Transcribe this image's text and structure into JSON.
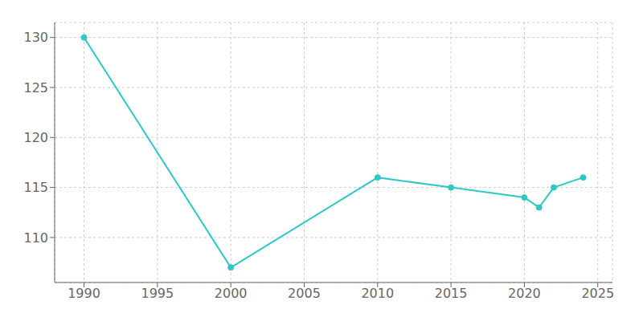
{
  "chart_data": {
    "type": "line",
    "x": [
      1990,
      2000,
      2010,
      2015,
      2020,
      2021,
      2022,
      2024
    ],
    "values": [
      130,
      107,
      116,
      115,
      114,
      113,
      115,
      116
    ],
    "color": "#2ec8c8",
    "marker": "circle",
    "xlim": [
      1988,
      2026
    ],
    "ylim": [
      105.5,
      131.5
    ],
    "xticks": [
      1990,
      1995,
      2000,
      2005,
      2010,
      2015,
      2020,
      2025
    ],
    "yticks": [
      110,
      115,
      120,
      125,
      130
    ],
    "grid": true
  }
}
